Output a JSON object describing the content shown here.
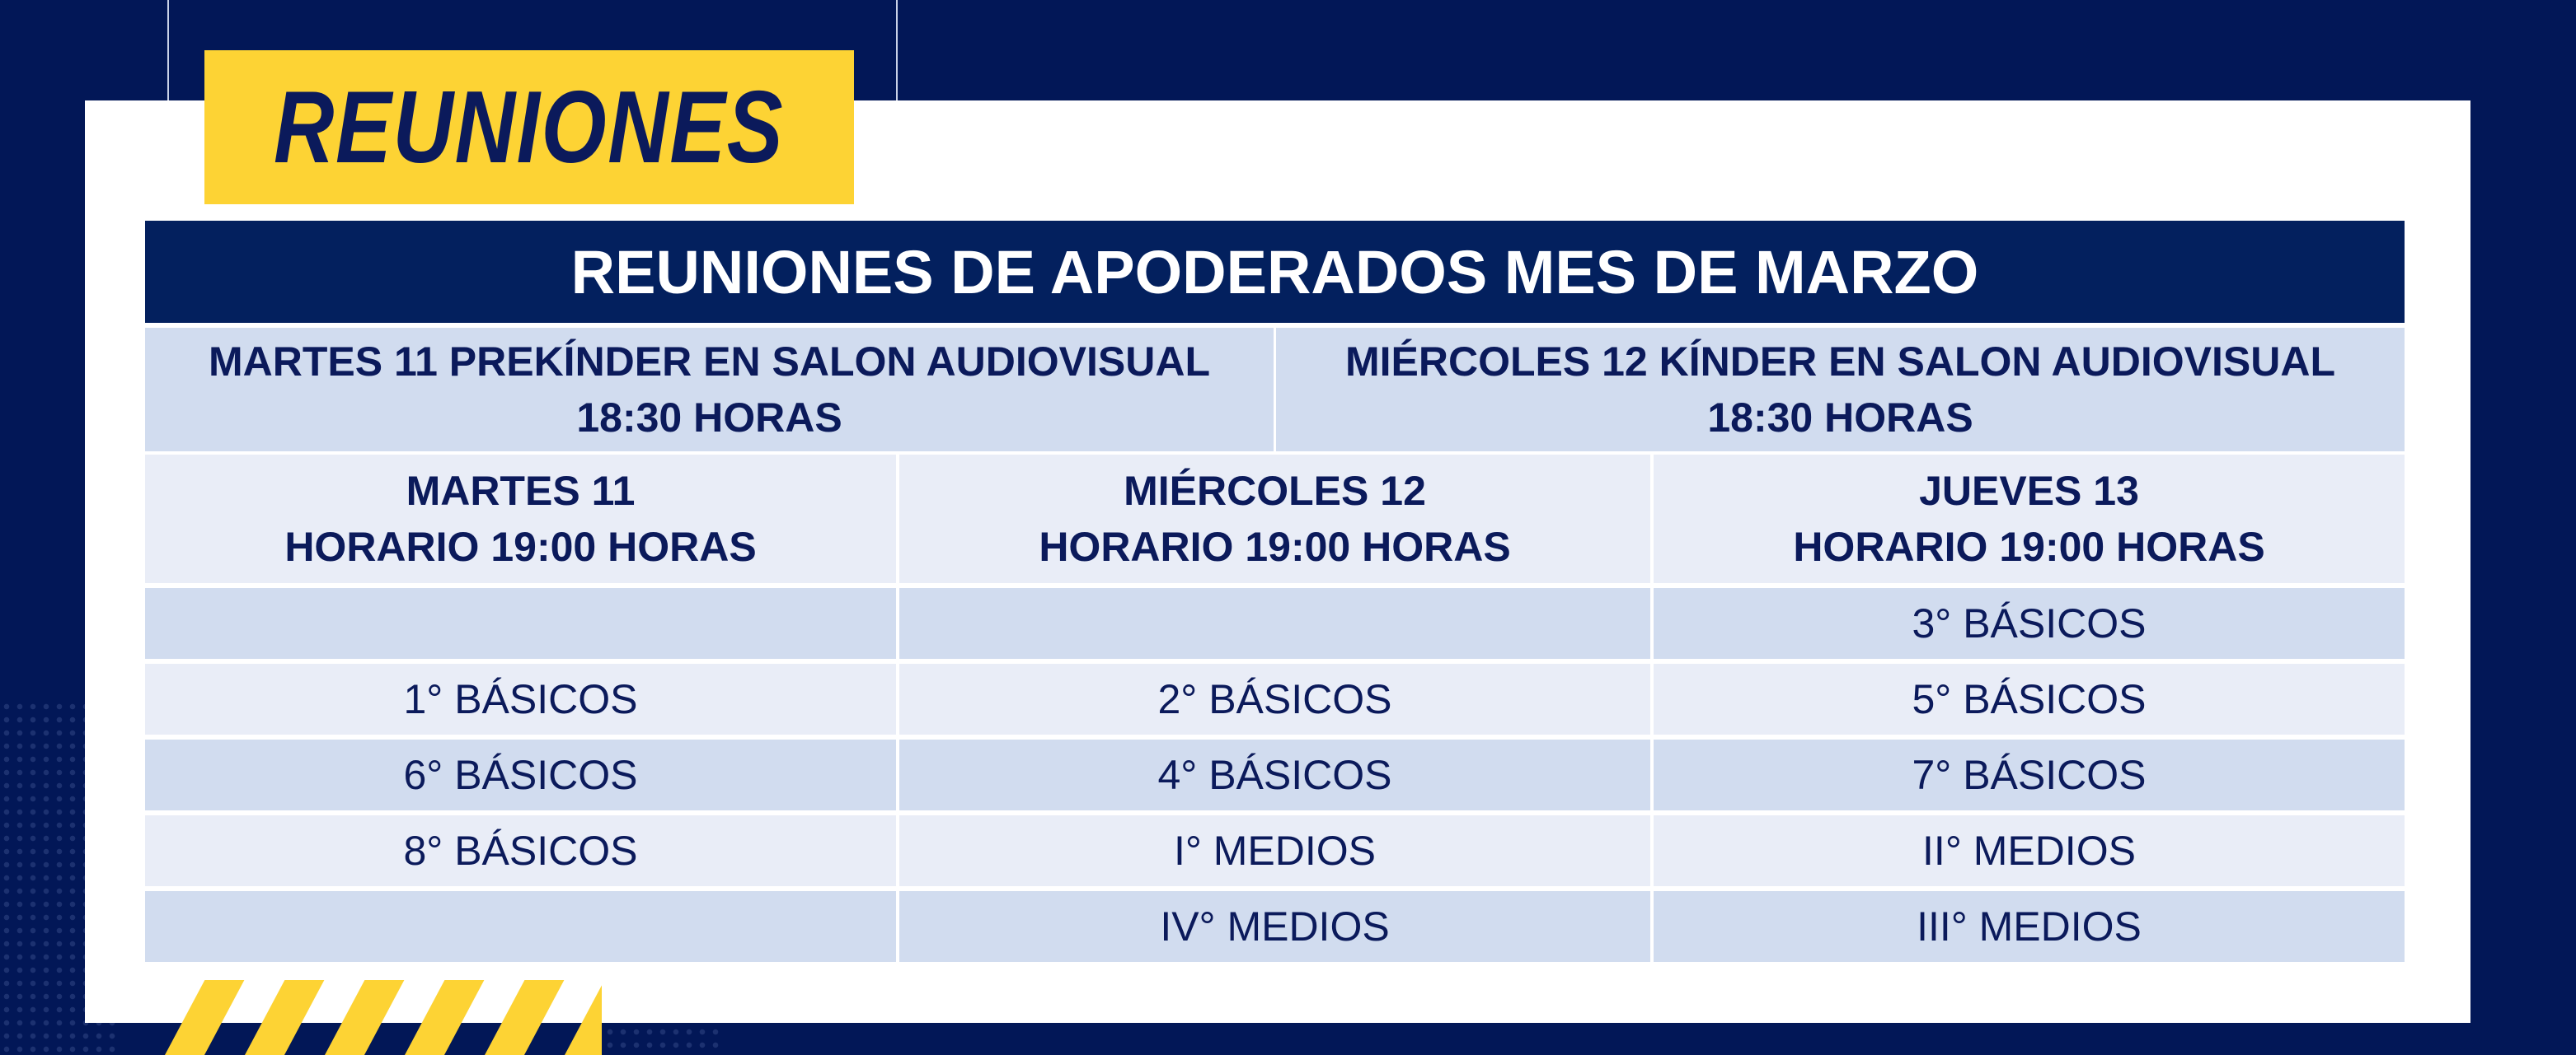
{
  "badge": {
    "text": "REUNIONES"
  },
  "table": {
    "title": "REUNIONES DE APODERADOS MES DE MARZO",
    "special_sessions": [
      {
        "line1": "MARTES 11 PREKÍNDER EN SALON AUDIOVISUAL",
        "line2": "18:30 HORAS"
      },
      {
        "line1": "MIÉRCOLES 12 KÍNDER EN SALON AUDIOVISUAL",
        "line2": "18:30 HORAS"
      }
    ],
    "columns": [
      {
        "day": "MARTES 11",
        "time": "HORARIO 19:00 HORAS"
      },
      {
        "day": "MIÉRCOLES 12",
        "time": "HORARIO 19:00 HORAS"
      },
      {
        "day": "JUEVES 13",
        "time": "HORARIO 19:00 HORAS"
      }
    ],
    "rows": [
      [
        "",
        "",
        "3° BÁSICOS"
      ],
      [
        "1° BÁSICOS",
        "2° BÁSICOS",
        "5° BÁSICOS"
      ],
      [
        "6° BÁSICOS",
        "4° BÁSICOS",
        "7° BÁSICOS"
      ],
      [
        "8° BÁSICOS",
        "I° MEDIOS",
        "II° MEDIOS"
      ],
      [
        "",
        "IV° MEDIOS",
        "III° MEDIOS"
      ]
    ]
  },
  "colors": {
    "navy_background": "#021757",
    "header_bar": "#03205e",
    "accent_yellow": "#fdd334",
    "row_shade": "#d1dcef",
    "row_light": "#e9edf7",
    "text_navy": "#0b1a5b"
  }
}
